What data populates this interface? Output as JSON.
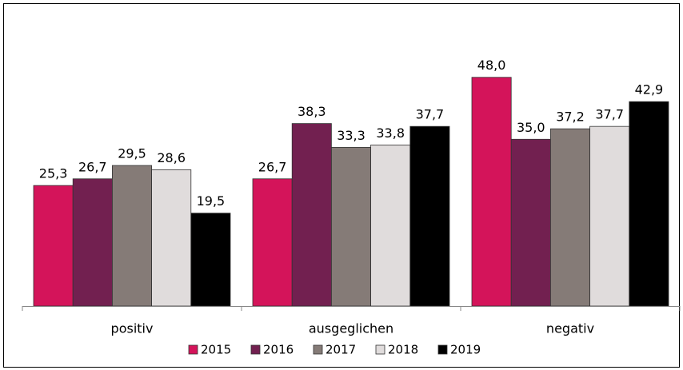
{
  "chart_data": {
    "type": "bar",
    "categories": [
      "positiv",
      "ausgeglichen",
      "negativ"
    ],
    "series": [
      {
        "name": "2015",
        "color": "#d4145a",
        "values": [
          25.3,
          26.7,
          48.0
        ],
        "value_labels": [
          "25,3",
          "26,7",
          "48,0"
        ]
      },
      {
        "name": "2016",
        "color": "#722050",
        "values": [
          26.7,
          38.3,
          35.0
        ],
        "value_labels": [
          "26,7",
          "38,3",
          "35,0"
        ]
      },
      {
        "name": "2017",
        "color": "#857b77",
        "values": [
          29.5,
          33.3,
          37.2
        ],
        "value_labels": [
          "29,5",
          "33,3",
          "37,2"
        ]
      },
      {
        "name": "2018",
        "color": "#e0dcdc",
        "values": [
          28.6,
          33.8,
          37.7
        ],
        "value_labels": [
          "28,6",
          "33,8",
          "37,7"
        ]
      },
      {
        "name": "2019",
        "color": "#000000",
        "values": [
          19.5,
          37.7,
          42.9
        ],
        "value_labels": [
          "19,5",
          "37,7",
          "42,9"
        ]
      }
    ],
    "ylim": [
      0,
      55
    ],
    "legend": "bottom"
  }
}
